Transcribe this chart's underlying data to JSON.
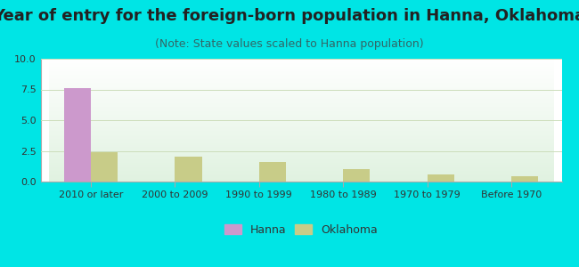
{
  "title": "Year of entry for the foreign-born population in Hanna, Oklahoma",
  "subtitle": "(Note: State values scaled to Hanna population)",
  "categories": [
    "2010 or later",
    "2000 to 2009",
    "1990 to 1999",
    "1980 to 1989",
    "1970 to 1979",
    "Before 1970"
  ],
  "hanna_values": [
    7.6,
    0,
    0,
    0,
    0,
    0
  ],
  "oklahoma_values": [
    2.4,
    2.0,
    1.6,
    1.0,
    0.55,
    0.42
  ],
  "hanna_color": "#cc99cc",
  "oklahoma_color": "#c8cc88",
  "ylim": [
    0,
    10
  ],
  "yticks": [
    0,
    2.5,
    5,
    7.5,
    10
  ],
  "background_outer": "#00e5e5",
  "bar_width": 0.32,
  "title_fontsize": 13,
  "subtitle_fontsize": 9,
  "tick_fontsize": 8,
  "legend_fontsize": 9,
  "title_color": "#222222",
  "subtitle_color": "#336666"
}
